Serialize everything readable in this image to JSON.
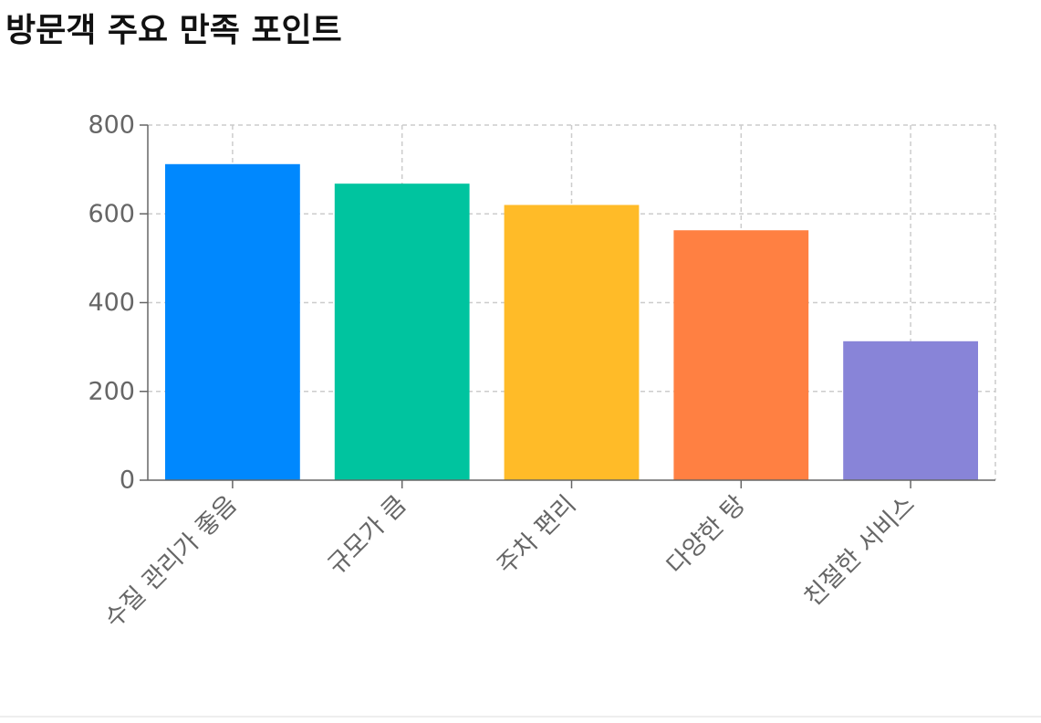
{
  "page": {
    "title": "방문객 주요 만족 포인트"
  },
  "chart_data": {
    "type": "bar",
    "title": "방문객 주요 만족 포인트",
    "categories": [
      "수질 관리가 좋음",
      "규모가 큼",
      "주차 편리",
      "다양한 탕",
      "친절한 서비스"
    ],
    "values": [
      712,
      668,
      620,
      563,
      313
    ],
    "colors": [
      "#0088FE",
      "#00C49F",
      "#FFBB28",
      "#FF8042",
      "#8884D8"
    ],
    "ylim": [
      0,
      800
    ],
    "yticks": [
      "0",
      "200",
      "400",
      "600",
      "800"
    ],
    "xlabel": "",
    "ylabel": "",
    "grid": true,
    "legend": "none"
  }
}
